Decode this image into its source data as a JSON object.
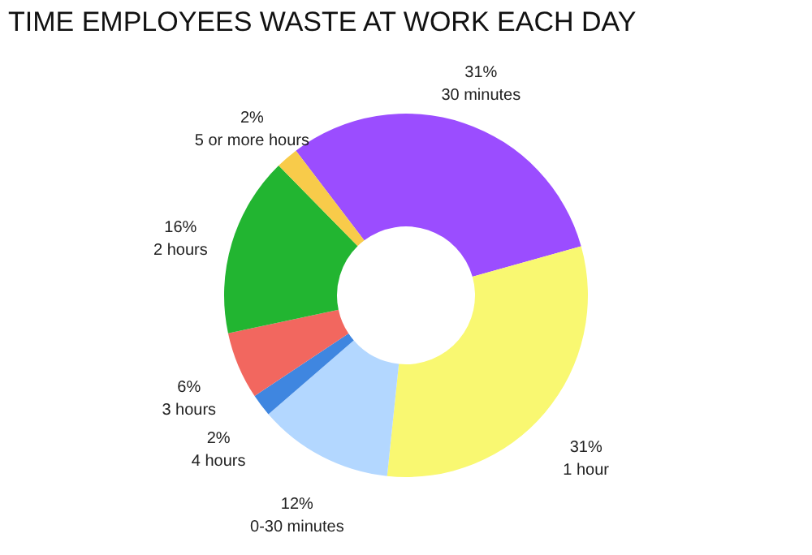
{
  "chart_data": {
    "type": "donut",
    "title": "TIME EMPLOYEES WASTE AT WORK EACH DAY",
    "categories": [
      "30 minutes",
      "1 hour",
      "0-30 minutes",
      "4 hours",
      "3 hours",
      "2 hours",
      "5 or more hours"
    ],
    "values": [
      31,
      31,
      12,
      2,
      6,
      16,
      2
    ],
    "value_labels": [
      "31%",
      "31%",
      "12%",
      "2%",
      "6%",
      "16%",
      "2%"
    ],
    "colors": [
      "#9b4dff",
      "#f9f871",
      "#b3d7ff",
      "#3f86e0",
      "#f2675f",
      "#22b531",
      "#f8cb4a"
    ],
    "legend": false
  }
}
